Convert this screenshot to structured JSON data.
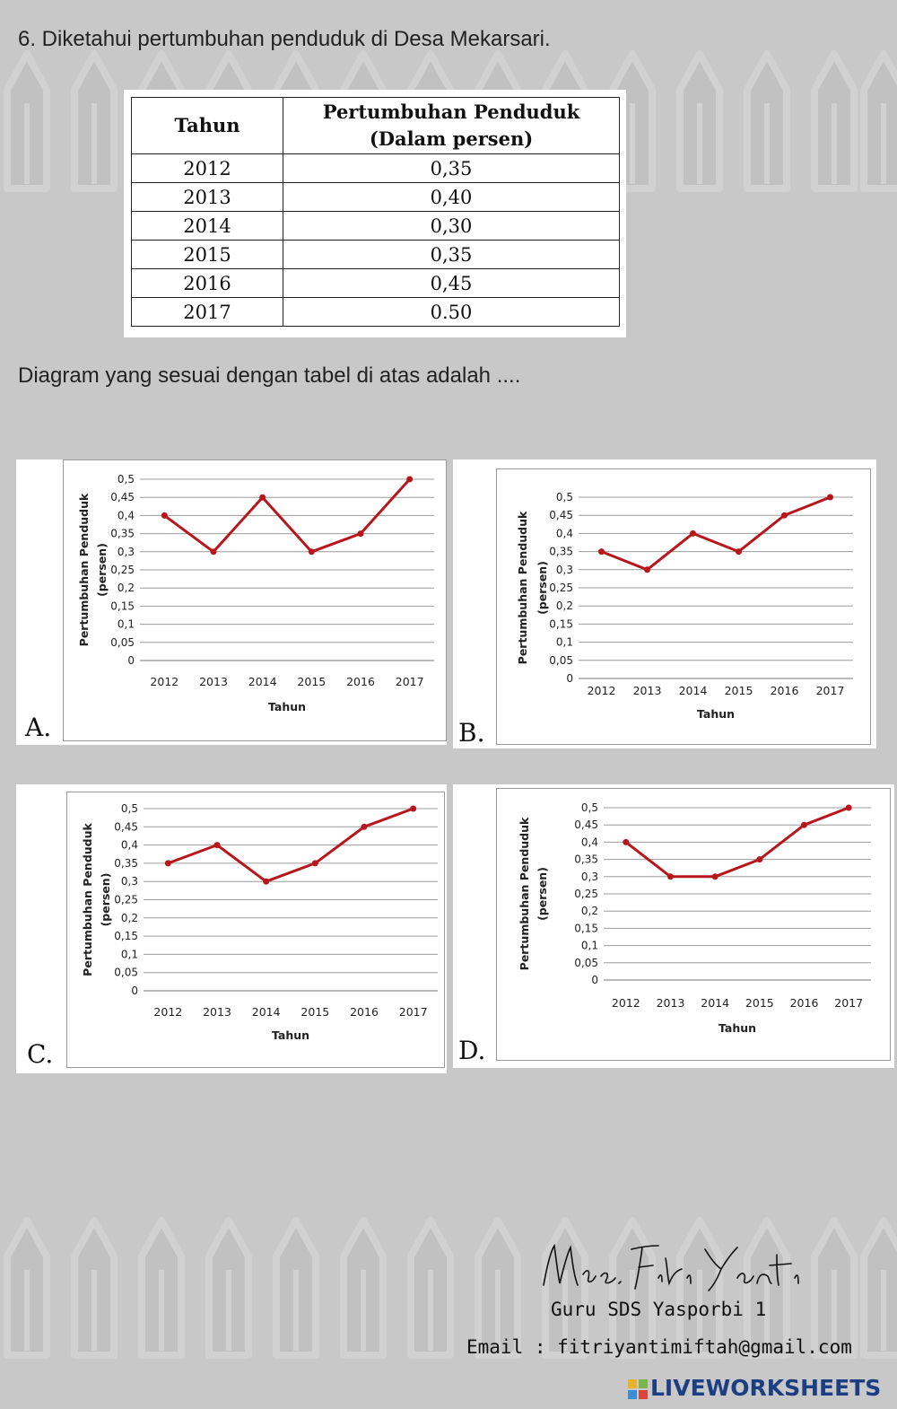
{
  "question": {
    "title": "6. Diketahui pertumbuhan penduduk di Desa Mekarsari.",
    "prompt": "Diagram yang sesuai dengan tabel di atas adalah ...."
  },
  "table": {
    "headers": [
      "Tahun",
      "Pertumbuhan Penduduk",
      "(Dalam persen)"
    ],
    "rows": [
      [
        "2012",
        "0,35"
      ],
      [
        "2013",
        "0,40"
      ],
      [
        "2014",
        "0,30"
      ],
      [
        "2015",
        "0,35"
      ],
      [
        "2016",
        "0,45"
      ],
      [
        "2017",
        "0.50"
      ]
    ]
  },
  "chart_data": [
    {
      "type": "line",
      "option": "A.",
      "categories": [
        "2012",
        "2013",
        "2014",
        "2015",
        "2016",
        "2017"
      ],
      "values": [
        0.4,
        0.3,
        0.45,
        0.3,
        0.35,
        0.5
      ],
      "xlabel": "Tahun",
      "ylabel": "Pertumbuhan Penduduk",
      "ylabel2": "(persen)",
      "yticks": [
        "0",
        "0,05",
        "0,1",
        "0,15",
        "0,2",
        "0,25",
        "0,3",
        "0,35",
        "0,4",
        "0,45",
        "0,5"
      ],
      "ylim": [
        0,
        0.5
      ],
      "grid": true,
      "legend": "none",
      "color": "#b8161b"
    },
    {
      "type": "line",
      "option": "B.",
      "categories": [
        "2012",
        "2013",
        "2014",
        "2015",
        "2016",
        "2017"
      ],
      "values": [
        0.35,
        0.3,
        0.4,
        0.35,
        0.45,
        0.5
      ],
      "xlabel": "Tahun",
      "ylabel": "Pertumbuhan Penduduk",
      "ylabel2": "(persen)",
      "yticks": [
        "0",
        "0,05",
        "0,1",
        "0,15",
        "0,2",
        "0,25",
        "0,3",
        "0,35",
        "0,4",
        "0,45",
        "0,5"
      ],
      "ylim": [
        0,
        0.5
      ],
      "grid": true,
      "legend": "none",
      "color": "#b8161b"
    },
    {
      "type": "line",
      "option": "C.",
      "categories": [
        "2012",
        "2013",
        "2014",
        "2015",
        "2016",
        "2017"
      ],
      "values": [
        0.35,
        0.4,
        0.3,
        0.35,
        0.45,
        0.5
      ],
      "xlabel": "Tahun",
      "ylabel": "Pertumbuhan Penduduk",
      "ylabel2": "(persen)",
      "yticks": [
        "0",
        "0,05",
        "0,1",
        "0,15",
        "0,2",
        "0,25",
        "0,3",
        "0,35",
        "0,4",
        "0,45",
        "0,5"
      ],
      "ylim": [
        0,
        0.5
      ],
      "grid": true,
      "legend": "none",
      "color": "#b8161b"
    },
    {
      "type": "line",
      "option": "D.",
      "categories": [
        "2012",
        "2013",
        "2014",
        "2015",
        "2016",
        "2017"
      ],
      "values": [
        0.4,
        0.3,
        0.3,
        0.35,
        0.45,
        0.5
      ],
      "xlabel": "Tahun",
      "ylabel": "Pertumbuhan Penduduk",
      "ylabel2": "(persen)",
      "yticks": [
        "0",
        "0,05",
        "0,1",
        "0,15",
        "0,2",
        "0,25",
        "0,3",
        "0,35",
        "0,4",
        "0,45",
        "0,5"
      ],
      "ylim": [
        0,
        0.5
      ],
      "grid": true,
      "legend": "none",
      "color": "#b8161b"
    }
  ],
  "footer": {
    "signature": "Mrs. Fitri Yanti",
    "school": "Guru SDS Yasporbi 1",
    "email": "Email : fitriyantimiftah@gmail.com",
    "brand": "LIVEWORKSHEETS"
  },
  "icons": {
    "background": "pencil-icon",
    "brand_mark": "liveworksheets-logo-icon"
  }
}
